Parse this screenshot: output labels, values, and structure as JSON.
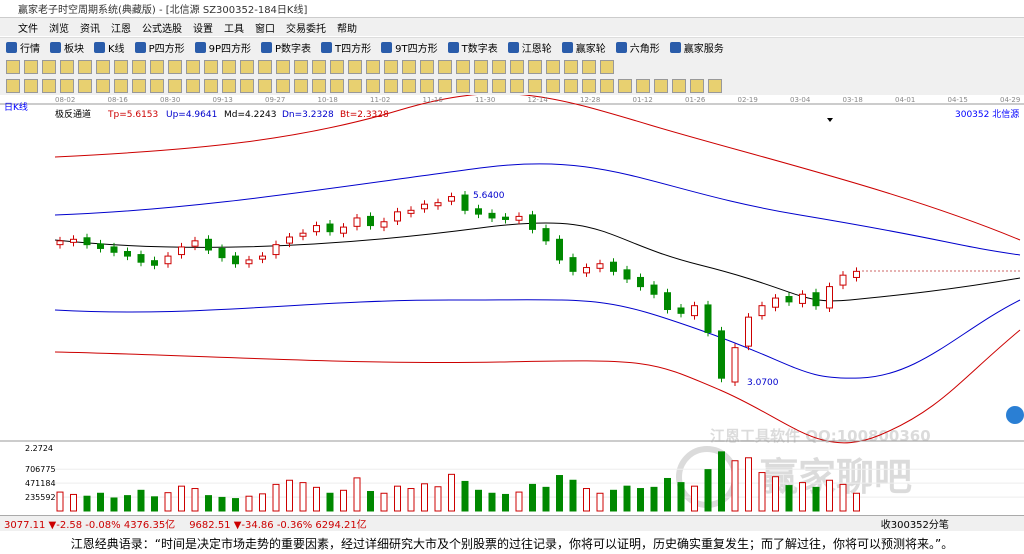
{
  "title_bar": "赢家老子时空周期系统(典藏版) - [北信源  SZ300352-184日K线]",
  "menu": [
    "文件",
    "浏览",
    "资讯",
    "江恩",
    "公式选股",
    "设置",
    "工具",
    "窗口",
    "交易委托",
    "帮助"
  ],
  "toolbar": [
    "行情",
    "板块",
    "K线",
    "P四方形",
    "9P四方形",
    "P数字表",
    "T四方形",
    "9T四方形",
    "T数字表",
    "江恩轮",
    "赢家轮",
    "六角形",
    "赢家服务"
  ],
  "chart_header": {
    "period": "日K线",
    "indicator": "极反通道",
    "params": [
      "Tp=5.6153",
      "Up=4.9641",
      "Md=4.2243",
      "Dn=3.2328",
      "Bt=2.3328"
    ],
    "stock": "300352  北信源"
  },
  "date_labels": [
    "08-02",
    "08-16",
    "08-30",
    "09-13",
    "09-27",
    "10-18",
    "11-02",
    "11-16",
    "11-30",
    "12-14",
    "12-28",
    "01-12",
    "01-26",
    "02-19",
    "03-04",
    "03-18",
    "04-01",
    "04-15",
    "04-29"
  ],
  "kline": {
    "ylim": [
      2.39,
      6.78
    ],
    "opens": [
      4.95,
      4.98,
      5.04,
      4.96,
      4.92,
      4.86,
      4.82,
      4.74,
      4.7,
      4.82,
      4.93,
      5.02,
      4.9,
      4.8,
      4.7,
      4.76,
      4.82,
      4.97,
      5.06,
      5.12,
      5.22,
      5.1,
      5.19,
      5.32,
      5.18,
      5.26,
      5.36,
      5.42,
      5.46,
      5.52,
      5.6,
      5.42,
      5.36,
      5.31,
      5.27,
      5.34,
      5.16,
      5.02,
      4.78,
      4.58,
      4.64,
      4.72,
      4.62,
      4.52,
      4.42,
      4.32,
      4.12,
      4.02,
      4.16,
      3.82,
      3.15,
      3.62,
      4.02,
      4.13,
      4.27,
      4.18,
      4.32,
      4.12,
      4.42,
      4.52
    ],
    "closes": [
      5.0,
      5.02,
      4.95,
      4.9,
      4.85,
      4.8,
      4.72,
      4.68,
      4.8,
      4.92,
      5.0,
      4.88,
      4.78,
      4.7,
      4.75,
      4.8,
      4.95,
      5.05,
      5.1,
      5.2,
      5.12,
      5.18,
      5.3,
      5.2,
      5.25,
      5.38,
      5.4,
      5.48,
      5.5,
      5.58,
      5.4,
      5.35,
      5.3,
      5.28,
      5.32,
      5.15,
      5.0,
      4.75,
      4.6,
      4.65,
      4.7,
      4.6,
      4.5,
      4.4,
      4.3,
      4.1,
      4.05,
      4.15,
      3.8,
      3.2,
      3.6,
      4.0,
      4.15,
      4.25,
      4.2,
      4.3,
      4.15,
      4.4,
      4.55,
      4.6
    ],
    "annotations": [
      "5.6400",
      "3.0700"
    ]
  },
  "volume": {
    "top_label": "2.2724",
    "ylim": [
      0,
      1150000
    ],
    "yticks": [
      235592,
      471184,
      706775
    ],
    "values": [
      320000,
      280000,
      250000,
      300000,
      220000,
      260000,
      350000,
      240000,
      310000,
      420000,
      380000,
      260000,
      230000,
      210000,
      250000,
      290000,
      450000,
      520000,
      480000,
      400000,
      300000,
      350000,
      560000,
      330000,
      300000,
      420000,
      380000,
      460000,
      410000,
      620000,
      500000,
      350000,
      300000,
      280000,
      320000,
      450000,
      400000,
      600000,
      520000,
      380000,
      300000,
      350000,
      420000,
      380000,
      400000,
      550000,
      480000,
      420000,
      700000,
      1000000,
      850000,
      900000,
      650000,
      580000,
      430000,
      480000,
      400000,
      520000,
      450000,
      300000
    ]
  },
  "watermark": [
    "江恩工具软件  QQ:100800360",
    "赢家聊吧"
  ],
  "status_bar": [
    "3077.11 ▼-2.58 -0.08% 4376.35亿",
    "9682.51 ▼-34.86 -0.36% 6294.21亿",
    "收300352分笔"
  ],
  "quote": "江恩经典语录：“时间是决定市场走势的重要因素，经过详细研究大市及个别股票的过往记录，你将可以证明，历史确实重复发生；而了解过往，你将可以预测将来。”。"
}
